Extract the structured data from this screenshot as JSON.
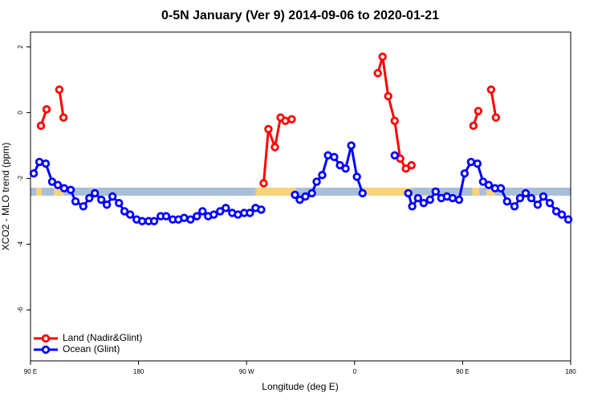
{
  "chart_data": {
    "type": "line",
    "title": "0-5N January (Ver 9)   2014-09-06 to 2020-01-21",
    "xlabel": "Longitude (deg E)",
    "ylabel": "XCO2 - MLO trend (ppm)",
    "xlim": [
      90,
      540
    ],
    "ylim": [
      -7.55,
      2.45
    ],
    "xticks": [
      {
        "value": 90,
        "label": "90 E"
      },
      180,
      {
        "value": 270,
        "label": "90 W"
      },
      {
        "value": 360,
        "label": "0"
      },
      {
        "value": 450,
        "label": "90 E"
      },
      {
        "value": 540,
        "label": "180"
      }
    ],
    "yticks": [
      -6,
      -4,
      -2,
      0,
      2
    ],
    "legend": "bottom-left",
    "band": {
      "ocean_color": "#a9bed9",
      "land_color": "#f7d37a",
      "land_spans": [
        [
          94.7,
          99.4
        ],
        [
          109.4,
          118
        ],
        [
          277.5,
          311
        ],
        [
          368,
          407.4
        ],
        [
          458,
          464
        ],
        [
          469.7,
          477
        ]
      ]
    },
    "series": [
      {
        "name": "Land (Nadir&Glint)",
        "color": "#ff0000",
        "x": [
          98.7,
          103.4,
          null,
          114,
          117.5,
          null,
          284.2,
          288.2,
          293.6,
          298.3,
          302.3,
          307.6,
          null,
          379.3,
          383.3,
          388,
          393.4,
          398,
          402.7,
          407.4,
          null,
          459,
          463,
          null,
          473.7,
          477.7
        ],
        "values": [
          -0.4,
          0.1,
          null,
          0.7,
          -0.15,
          null,
          -2.15,
          -0.5,
          -1.05,
          -0.15,
          -0.25,
          -0.2,
          null,
          1.2,
          1.7,
          0.5,
          -0.25,
          -1.4,
          -1.7,
          -1.6,
          null,
          -0.4,
          0.05,
          null,
          0.7,
          -0.15
        ]
      },
      {
        "name": "Ocean (Glint)",
        "color": "#0000ff",
        "x": [
          92.7,
          97.4,
          102.7,
          108,
          112.8,
          118,
          123.5,
          127.5,
          134,
          139,
          143.6,
          149,
          153.6,
          158.3,
          163.7,
          168.3,
          173,
          178.4,
          183,
          188.4,
          193,
          198.5,
          203,
          208.5,
          213.2,
          218,
          223.3,
          228.6,
          233.3,
          238,
          242.7,
          248,
          252.7,
          258,
          262.8,
          268,
          272.8,
          277.5,
          282.2,
          null,
          310.3,
          314.3,
          319,
          324.4,
          328.4,
          333,
          337.8,
          343,
          347.8,
          352.5,
          357.2,
          361.9,
          366.6,
          null,
          393.4,
          null,
          404.7,
          408,
          412.8,
          417.5,
          422.8,
          427.5,
          432.2,
          436.9,
          441.6,
          447,
          451.6,
          457,
          462.3,
          467,
          471.7,
          477,
          481.8,
          487,
          493.2,
          497.8,
          502.5,
          507.2,
          512.5,
          517.2,
          522.6,
          528,
          532.6,
          538
        ],
        "values": [
          -1.85,
          -1.5,
          -1.55,
          -2.1,
          -2.2,
          -2.3,
          -2.35,
          -2.7,
          -2.85,
          -2.6,
          -2.45,
          -2.65,
          -2.8,
          -2.55,
          -2.75,
          -3.0,
          -3.1,
          -3.25,
          -3.3,
          -3.3,
          -3.3,
          -3.15,
          -3.15,
          -3.25,
          -3.25,
          -3.2,
          -3.25,
          -3.15,
          -3.0,
          -3.15,
          -3.1,
          -3.0,
          -2.9,
          -3.05,
          -3.1,
          -3.05,
          -3.05,
          -2.9,
          -2.95,
          null,
          -2.5,
          -2.65,
          -2.55,
          -2.45,
          -2.1,
          -1.9,
          -1.3,
          -1.35,
          -1.6,
          -1.7,
          -1.0,
          -1.95,
          -2.45,
          null,
          -1.3,
          null,
          -2.45,
          -2.85,
          -2.6,
          -2.75,
          -2.65,
          -2.4,
          -2.6,
          -2.55,
          -2.6,
          -2.65,
          -1.85,
          -1.5,
          -1.55,
          -2.1,
          -2.2,
          -2.3,
          -2.3,
          -2.7,
          -2.85,
          -2.6,
          -2.45,
          -2.6,
          -2.8,
          -2.55,
          -2.75,
          -3.0,
          -3.1,
          -3.25
        ]
      }
    ]
  }
}
